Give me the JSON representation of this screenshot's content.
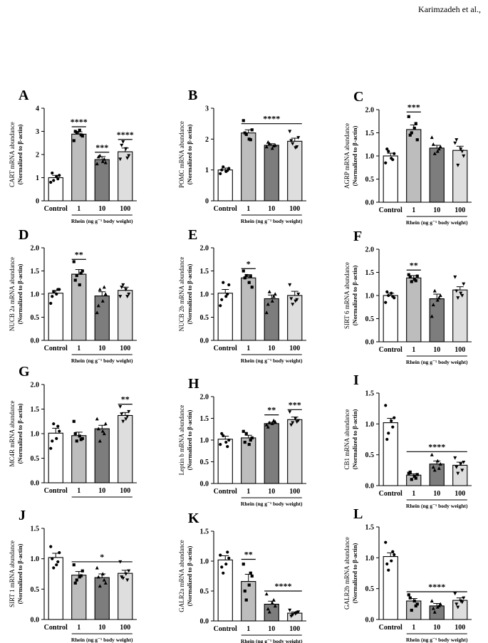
{
  "header": {
    "author": "Karimzadeh et al.,"
  },
  "colors": {
    "c0": "#ffffff",
    "c1": "#bdbdbd",
    "c2": "#7d7d7d",
    "c3": "#dedede"
  },
  "chart_data": [
    {
      "panel": "A",
      "type": "bar",
      "ylabel": "CART mRNA abundance",
      "ylabel2": "(Normalized to β-actin)",
      "categories": [
        "Control",
        "1",
        "10",
        "100"
      ],
      "group_label": "Rhein (ng g⁻¹ body weight)",
      "ylim": [
        0,
        4
      ],
      "ticks": [
        "0",
        "1",
        "2",
        "3",
        "4"
      ],
      "values": [
        1.0,
        2.88,
        1.78,
        2.12
      ],
      "errors": [
        0.1,
        0.1,
        0.13,
        0.16
      ],
      "points": [
        [
          0.8,
          0.88,
          1.05,
          1.1,
          1.2,
          0.95
        ],
        [
          2.6,
          2.95,
          3.05,
          2.8,
          3.0,
          2.85
        ],
        [
          1.6,
          1.95,
          1.7,
          1.65,
          1.9,
          1.8
        ],
        [
          1.8,
          2.55,
          2.25,
          1.95,
          2.4,
          1.85
        ]
      ],
      "sig": [
        {
          "label": "****",
          "cats": [
            1
          ],
          "level": 3.2
        },
        {
          "label": "***",
          "cats": [
            2
          ],
          "level": 2.1
        },
        {
          "label": "****",
          "cats": [
            3
          ],
          "level": 2.65
        }
      ]
    },
    {
      "panel": "B",
      "type": "bar",
      "ylabel": "POMC mRNA abundance",
      "ylabel2": "(Normalized to β-actin)",
      "categories": [
        "Control",
        "1",
        "10",
        "100"
      ],
      "group_label": "Rhein (ng g⁻¹ body weight)",
      "ylim": [
        0,
        3
      ],
      "ticks": [
        "0",
        "1",
        "2",
        "3"
      ],
      "values": [
        1.0,
        2.2,
        1.8,
        1.93
      ],
      "errors": [
        0.06,
        0.1,
        0.05,
        0.1
      ],
      "points": [
        [
          0.88,
          1.1,
          0.95,
          1.05,
          1.0,
          0.98
        ],
        [
          2.6,
          2.15,
          2.0,
          2.3,
          2.2,
          1.98
        ],
        [
          1.75,
          1.85,
          1.7,
          1.8,
          1.9,
          1.78
        ],
        [
          2.25,
          1.85,
          1.72,
          2.05,
          1.95,
          1.75
        ]
      ],
      "sig": [
        {
          "label": "****",
          "cats": [
            1,
            3
          ],
          "level": 2.5
        }
      ]
    },
    {
      "panel": "C",
      "type": "bar",
      "ylabel": "AGRP mRNA abundance",
      "ylabel2": "(Normalized to β-actin)",
      "categories": [
        "Control",
        "1",
        "10",
        "100"
      ],
      "group_label": "Rhein (ng g⁻¹ body weight)",
      "ylim": [
        0,
        2
      ],
      "ticks": [
        "0.0",
        "0.5",
        "1.0",
        "1.5",
        "2.0"
      ],
      "values": [
        1.0,
        1.57,
        1.17,
        1.12
      ],
      "errors": [
        0.06,
        0.1,
        0.06,
        0.09
      ],
      "points": [
        [
          0.85,
          1.1,
          0.95,
          1.05,
          1.15,
          0.92
        ],
        [
          1.85,
          1.5,
          1.6,
          1.35,
          1.45,
          1.7
        ],
        [
          1.4,
          1.05,
          1.1,
          1.2,
          1.25,
          1.15
        ],
        [
          1.28,
          0.8,
          1.15,
          1.0,
          1.35,
          1.1
        ]
      ],
      "sig": [
        {
          "label": "***",
          "cats": [
            1
          ],
          "level": 1.95
        }
      ]
    },
    {
      "panel": "D",
      "type": "bar",
      "ylabel": "NUCB 2a mRNA abundance",
      "ylabel2": "(Normalized to β-actin)",
      "categories": [
        "Control",
        "1",
        "10",
        "100"
      ],
      "group_label": "Rhein (ng g⁻¹ body weight)",
      "ylim": [
        0,
        2
      ],
      "ticks": [
        "0.0",
        "0.5",
        "1.0",
        "1.5",
        "2.0"
      ],
      "values": [
        1.02,
        1.43,
        0.96,
        1.08
      ],
      "errors": [
        0.06,
        0.1,
        0.09,
        0.07
      ],
      "points": [
        [
          0.8,
          1.05,
          1.0,
          1.1,
          0.95,
          1.1
        ],
        [
          1.7,
          1.4,
          1.2,
          1.5,
          1.3,
          1.45
        ],
        [
          0.6,
          1.1,
          0.85,
          1.0,
          0.75,
          1.15
        ],
        [
          0.95,
          1.2,
          1.1,
          1.0,
          1.15,
          0.95
        ]
      ],
      "sig": [
        {
          "label": "**",
          "cats": [
            1
          ],
          "level": 1.75
        }
      ]
    },
    {
      "panel": "E",
      "type": "bar",
      "ylabel": "NUCB 2b mRNA abundance",
      "ylabel2": "(Normalized to β-actin)",
      "categories": [
        "Control",
        "1",
        "10",
        "100"
      ],
      "group_label": "Rhein (ng g⁻¹ body weight)",
      "ylim": [
        0,
        2
      ],
      "ticks": [
        "0.0",
        "0.5",
        "1.0",
        "1.5",
        "2.0"
      ],
      "values": [
        1.02,
        1.35,
        0.9,
        0.97
      ],
      "errors": [
        0.08,
        0.07,
        0.08,
        0.09
      ],
      "points": [
        [
          0.75,
          1.25,
          0.95,
          1.2,
          0.88,
          1.0
        ],
        [
          1.5,
          1.4,
          1.25,
          1.15,
          1.35,
          1.38
        ],
        [
          0.6,
          1.05,
          0.85,
          1.0,
          0.78,
          0.95
        ],
        [
          1.2,
          0.78,
          0.85,
          1.0,
          0.9,
          0.88
        ]
      ],
      "sig": [
        {
          "label": "*",
          "cats": [
            1
          ],
          "level": 1.55
        }
      ]
    },
    {
      "panel": "F",
      "type": "bar",
      "ylabel": "SIRT 6 mRNA abundance",
      "ylabel2": "(Normalized to β-actin)",
      "categories": [
        "Control",
        "1",
        "10",
        "100"
      ],
      "group_label": "Rhein (ng g⁻¹ body weight)",
      "ylim": [
        0,
        2
      ],
      "ticks": [
        "0.0",
        "0.5",
        "1.0",
        "1.5",
        "2.0"
      ],
      "values": [
        1.0,
        1.38,
        0.93,
        1.12
      ],
      "errors": [
        0.05,
        0.05,
        0.1,
        0.07
      ],
      "points": [
        [
          0.85,
          1.0,
          1.05,
          0.95,
          1.08,
          0.98
        ],
        [
          1.45,
          1.3,
          1.35,
          1.42,
          1.4,
          1.32
        ],
        [
          0.55,
          1.1,
          0.9,
          1.0,
          0.8,
          0.95
        ],
        [
          1.4,
          0.95,
          1.05,
          1.25,
          1.1,
          1.0
        ]
      ],
      "sig": [
        {
          "label": "**",
          "cats": [
            1
          ],
          "level": 1.55
        }
      ]
    },
    {
      "panel": "G",
      "type": "bar",
      "ylabel": "MC4R mRNA abundance",
      "ylabel2": "(Normalized to β-actin)",
      "categories": [
        "Control",
        "1",
        "10",
        "100"
      ],
      "group_label": "",
      "ylim": [
        0,
        2
      ],
      "ticks": [
        "0.0",
        "0.5",
        "1.0",
        "1.5",
        "2.0"
      ],
      "values": [
        1.01,
        0.96,
        1.1,
        1.37
      ],
      "errors": [
        0.1,
        0.07,
        0.07,
        0.06
      ],
      "points": [
        [
          0.7,
          1.2,
          0.9,
          1.05,
          0.85,
          1.15
        ],
        [
          1.25,
          0.85,
          0.95,
          0.9,
          1.0,
          0.88
        ],
        [
          1.3,
          0.85,
          1.05,
          1.2,
          1.1,
          1.0
        ],
        [
          1.55,
          1.25,
          1.3,
          1.45,
          1.4,
          1.35
        ]
      ],
      "sig": [
        {
          "label": "**",
          "cats": [
            3
          ],
          "level": 1.6
        }
      ]
    },
    {
      "panel": "H",
      "type": "bar",
      "ylabel": "Leptin b mRNA abundance",
      "ylabel2": "(Normalized to β-actin)",
      "categories": [
        "Control",
        "1",
        "10",
        "100"
      ],
      "group_label": "Rhein (ng g⁻¹ body weight)",
      "ylim": [
        0,
        2
      ],
      "ticks": [
        "0.0",
        "0.5",
        "1.0",
        "1.5",
        "2.0"
      ],
      "values": [
        1.02,
        1.05,
        1.38,
        1.47
      ],
      "errors": [
        0.07,
        0.06,
        0.03,
        0.06
      ],
      "points": [
        [
          0.9,
          1.1,
          0.95,
          1.0,
          1.15,
          0.85
        ],
        [
          1.2,
          1.15,
          0.9,
          1.05,
          0.95,
          1.0
        ],
        [
          1.35,
          1.4,
          1.38,
          1.42,
          1.3,
          1.45
        ],
        [
          1.65,
          1.4,
          1.5,
          1.45,
          1.35,
          1.42
        ]
      ],
      "sig": [
        {
          "label": "**",
          "cats": [
            2
          ],
          "level": 1.58
        },
        {
          "label": "***",
          "cats": [
            3
          ],
          "level": 1.7
        }
      ]
    },
    {
      "panel": "I",
      "type": "bar",
      "ylabel": "CB1 mRNA abundance",
      "ylabel2": "(Normalized to β-actin)",
      "categories": [
        "Control",
        "1",
        "10",
        "100"
      ],
      "group_label": "Rhein (ng g⁻¹ body weight)",
      "ylim": [
        0,
        1.5
      ],
      "ticks": [
        "0.0",
        "0.5",
        "1.0",
        "1.5"
      ],
      "values": [
        1.02,
        0.17,
        0.35,
        0.33
      ],
      "errors": [
        0.07,
        0.02,
        0.05,
        0.05
      ],
      "points": [
        [
          1.3,
          0.85,
          1.05,
          1.1,
          0.75,
          0.95
        ],
        [
          0.2,
          0.1,
          0.15,
          0.18,
          0.22,
          0.12
        ],
        [
          0.5,
          0.25,
          0.4,
          0.35,
          0.3,
          0.28
        ],
        [
          0.45,
          0.2,
          0.35,
          0.38,
          0.3,
          0.25
        ]
      ],
      "sig": [
        {
          "label": "****",
          "cats": [
            1,
            3
          ],
          "level": 0.55
        }
      ]
    },
    {
      "panel": "J",
      "type": "bar",
      "ylabel": "SIRT 1 mRNA abundance",
      "ylabel2": "(Normalized to β-actin)",
      "categories": [
        "Control",
        "1",
        "10",
        "100"
      ],
      "group_label": "Rhein (ng g⁻¹ body weight)",
      "ylim": [
        0,
        1.5
      ],
      "ticks": [
        "0.0",
        "0.5",
        "1.0",
        "1.5"
      ],
      "values": [
        1.02,
        0.73,
        0.69,
        0.76
      ],
      "errors": [
        0.07,
        0.06,
        0.06,
        0.05
      ],
      "points": [
        [
          1.2,
          0.85,
          0.9,
          1.1,
          1.0,
          0.95
        ],
        [
          0.9,
          0.65,
          0.7,
          0.8,
          0.6,
          0.72
        ],
        [
          0.85,
          0.55,
          0.75,
          0.6,
          0.7,
          0.65
        ],
        [
          0.95,
          0.68,
          0.75,
          0.8,
          0.7,
          0.65
        ]
      ],
      "sig": [
        {
          "label": "*",
          "cats": [
            1,
            3
          ],
          "level": 0.95
        }
      ]
    },
    {
      "panel": "K",
      "type": "bar",
      "ylabel": "GALR2a mRNA abundance",
      "ylabel2": "(Normalized to β-actin)",
      "categories": [
        "Control",
        "1",
        "10",
        "100"
      ],
      "group_label": "Rhein (ng g⁻¹ body weight)",
      "ylim": [
        0,
        1.5
      ],
      "ticks": [
        "0.0",
        "0.5",
        "1.0",
        "1.5"
      ],
      "values": [
        1.02,
        0.66,
        0.28,
        0.13
      ],
      "errors": [
        0.07,
        0.12,
        0.05,
        0.02
      ],
      "points": [
        [
          1.1,
          0.8,
          0.95,
          1.05,
          0.9,
          1.15
        ],
        [
          0.95,
          0.35,
          0.6,
          0.75,
          0.5,
          0.8
        ],
        [
          0.45,
          0.15,
          0.3,
          0.25,
          0.2,
          0.35
        ],
        [
          0.18,
          0.1,
          0.12,
          0.15,
          0.08,
          0.14
        ]
      ],
      "sig": [
        {
          "label": "**",
          "cats": [
            1
          ],
          "level": 1.03
        },
        {
          "label": "****",
          "cats": [
            2,
            3
          ],
          "level": 0.5
        }
      ]
    },
    {
      "panel": "L",
      "type": "bar",
      "ylabel": "GALR2b mRNA abundance",
      "ylabel2": "(Normalized to β-actin)",
      "categories": [
        "Control",
        "1",
        "10",
        "100"
      ],
      "group_label": "Rhein (ng g⁻¹ body weight)",
      "ylim": [
        0,
        1.5
      ],
      "ticks": [
        "0.0",
        "0.5",
        "1.0",
        "1.5"
      ],
      "values": [
        1.02,
        0.3,
        0.22,
        0.31
      ],
      "errors": [
        0.06,
        0.04,
        0.04,
        0.04
      ],
      "points": [
        [
          1.25,
          0.8,
          0.95,
          1.05,
          0.9,
          1.1
        ],
        [
          0.4,
          0.15,
          0.3,
          0.25,
          0.35,
          0.22
        ],
        [
          0.3,
          0.12,
          0.2,
          0.25,
          0.18,
          0.22
        ],
        [
          0.42,
          0.2,
          0.3,
          0.35,
          0.25,
          0.28
        ]
      ],
      "sig": [
        {
          "label": "****",
          "cats": [
            1,
            3
          ],
          "level": 0.45
        }
      ]
    }
  ]
}
